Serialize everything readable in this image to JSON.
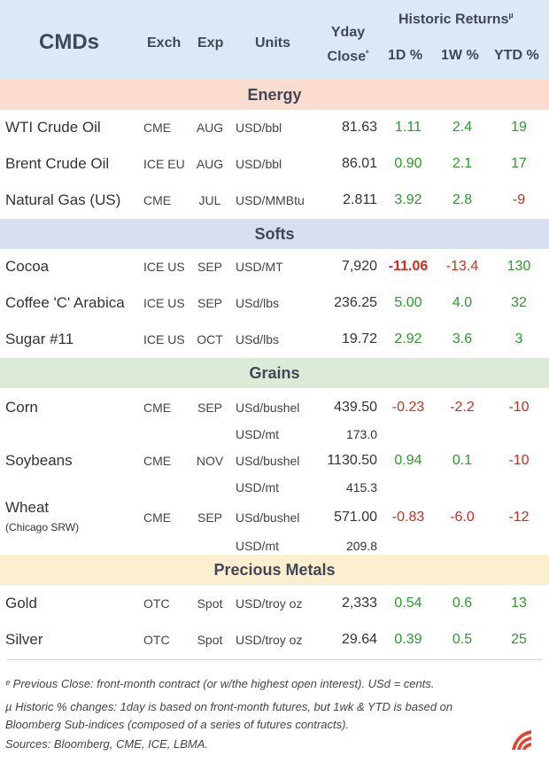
{
  "header": {
    "title": "CMDs",
    "exch": "Exch",
    "exp": "Exp",
    "units": "Units",
    "yday_line1": "Yday",
    "yday_line2": "Close",
    "yday_mark": "ᵉ",
    "historic": "Historic Returns",
    "historic_mark": "µ",
    "d1": "1D %",
    "w1": "1W %",
    "ytd": "YTD %"
  },
  "sections": {
    "energy": "Energy",
    "softs": "Softs",
    "grains": "Grains",
    "metals": "Precious Metals"
  },
  "rows": {
    "wti": {
      "name": "WTI Crude Oil",
      "exch": "CME",
      "exp": "AUG",
      "units": "USD/bbl",
      "close": "81.63",
      "d1": "1.11",
      "w1": "2.4",
      "ytd": "19"
    },
    "brent": {
      "name": "Brent Crude Oil",
      "exch": "ICE EU",
      "exp": "AUG",
      "units": "USD/bbl",
      "close": "86.01",
      "d1": "0.90",
      "w1": "2.1",
      "ytd": "17"
    },
    "natgas": {
      "name": "Natural Gas (US)",
      "exch": "CME",
      "exp": "JUL",
      "units": "USD/MMBtu",
      "close": "2.811",
      "d1": "3.92",
      "w1": "2.8",
      "ytd": "-9"
    },
    "cocoa": {
      "name": "Cocoa",
      "exch": "ICE US",
      "exp": "SEP",
      "units": "USD/MT",
      "close": "7,920",
      "d1": "-11.06",
      "w1": "-13.4",
      "ytd": "130"
    },
    "coffee": {
      "name": "Coffee 'C' Arabica",
      "exch": "ICE US",
      "exp": "SEP",
      "units": "USd/lbs",
      "close": "236.25",
      "d1": "5.00",
      "w1": "4.0",
      "ytd": "32"
    },
    "sugar": {
      "name": "Sugar #11",
      "exch": "ICE US",
      "exp": "OCT",
      "units": "USd/lbs",
      "close": "19.72",
      "d1": "2.92",
      "w1": "3.6",
      "ytd": "3"
    },
    "corn": {
      "name": "Corn",
      "exch": "CME",
      "exp": "SEP",
      "units": "USd/bushel",
      "close": "439.50",
      "d1": "-0.23",
      "w1": "-2.2",
      "ytd": "-10",
      "units2": "USD/mt",
      "close2": "173.0"
    },
    "soybeans": {
      "name": "Soybeans",
      "exch": "CME",
      "exp": "NOV",
      "units": "USd/bushel",
      "close": "1130.50",
      "d1": "0.94",
      "w1": "0.1",
      "ytd": "-10",
      "units2": "USD/mt",
      "close2": "415.3"
    },
    "wheat": {
      "name": "Wheat",
      "sub": "(Chicago SRW)",
      "exch": "CME",
      "exp": "SEP",
      "units": "USd/bushel",
      "close": "571.00",
      "d1": "-0.83",
      "w1": "-6.0",
      "ytd": "-12",
      "units2": "USD/mt",
      "close2": "209.8"
    },
    "gold": {
      "name": "Gold",
      "exch": "OTC",
      "exp": "Spot",
      "units": "USD/troy oz",
      "close": "2,333",
      "d1": "0.54",
      "w1": "0.6",
      "ytd": "13"
    },
    "silver": {
      "name": "Silver",
      "exch": "OTC",
      "exp": "Spot",
      "units": "USD/troy oz",
      "close": "29.64",
      "d1": "0.39",
      "w1": "0.5",
      "ytd": "25"
    }
  },
  "footnotes": {
    "line1": "ᵉ Previous Close: front-month contract (or w/the highest open interest). USd = cents.",
    "line2": "µ Historic % changes: 1day is based on front-month futures, but 1wk & YTD is based on",
    "line3": "Bloomberg Sub-indices (composed of a series of futures contracts).",
    "line4": "Sources: Bloomberg, CME, ICE, LBMA."
  },
  "colors": {
    "header_bg": "#dbe8f5",
    "energy_bg": "#fbdccf",
    "softs_bg": "#d8dff0",
    "grains_bg": "#dcebd7",
    "metals_bg": "#fcefcf",
    "positive": "#2c9b2c",
    "negative": "#d42a1c",
    "logo": "#e8402a"
  },
  "icons": {
    "logo": "brand-stripes-logo"
  }
}
